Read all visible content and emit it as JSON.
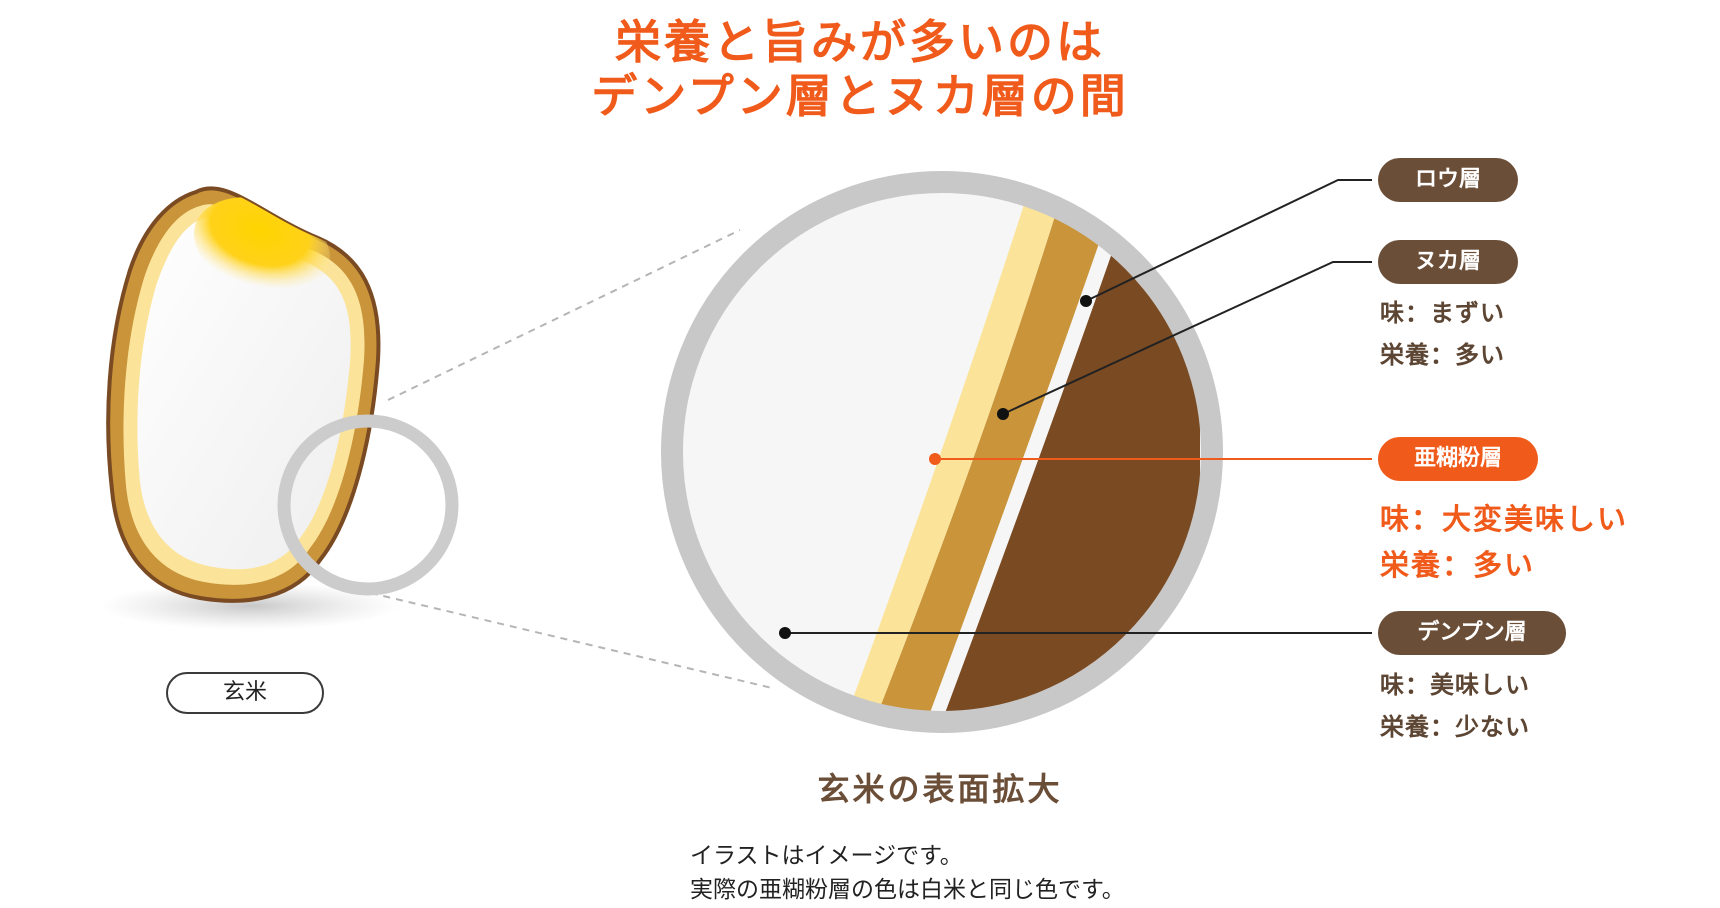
{
  "title": {
    "line1": "栄養と旨みが多いのは",
    "line2": "デンプン層とヌカ層の間"
  },
  "rice_label": "玄米",
  "zoom_caption": "玄米の表面拡大",
  "layers": [
    {
      "name": "ロウ層",
      "highlight": false,
      "lines": []
    },
    {
      "name": "ヌカ層",
      "highlight": false,
      "lines": [
        "味：まずい",
        "栄養：多い"
      ]
    },
    {
      "name": "亜糊粉層",
      "highlight": true,
      "lines": [
        "味：大変美味しい",
        "栄養：多い"
      ]
    },
    {
      "name": "デンプン層",
      "highlight": false,
      "lines": [
        "味：美味しい",
        "栄養：少ない"
      ]
    }
  ],
  "notes": [
    "イラストはイメージです。",
    "実際の亜糊粉層の色は白米と同じ色です。"
  ],
  "colors": {
    "accent": "#f05a1a",
    "brown_label": "#6b4e38",
    "bran_outer": "#7a4a22",
    "bran": "#c9943a",
    "aleurone": "#fbe49a",
    "starch": "#f7f7f7",
    "ring": "#c8c8c8"
  }
}
